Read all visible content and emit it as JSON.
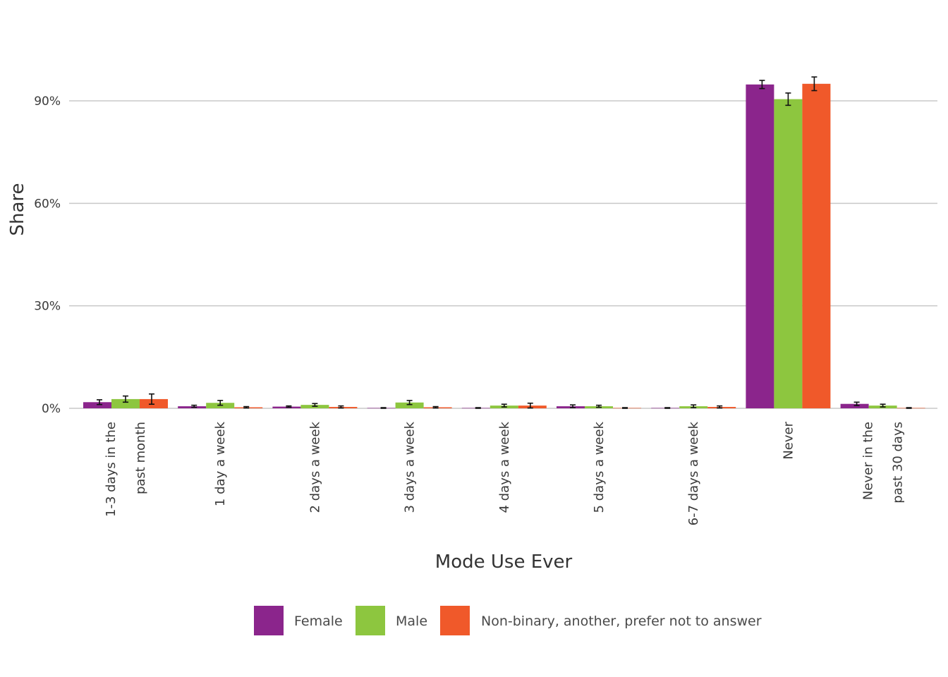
{
  "chart_data": {
    "type": "bar",
    "xlabel": "Mode Use Ever",
    "ylabel": "Share",
    "ylim": [
      0,
      100
    ],
    "yticks": [
      0,
      30,
      60,
      90
    ],
    "ytick_labels": [
      "0%",
      "30%",
      "60%",
      "90%"
    ],
    "grid": true,
    "legend_position": "bottom",
    "categories": [
      [
        "1-3 days in the",
        "past month"
      ],
      [
        "1 day a week"
      ],
      [
        "2 days a week"
      ],
      [
        "3 days a week"
      ],
      [
        "4 days a week"
      ],
      [
        "5 days a week"
      ],
      [
        "6-7 days a week"
      ],
      [
        "Never"
      ],
      [
        "Never in the",
        "past 30 days"
      ]
    ],
    "series": [
      {
        "name": "Female",
        "color": "#8B258C",
        "values": [
          1.8,
          0.6,
          0.5,
          0.1,
          0.1,
          0.6,
          0.1,
          94.8,
          1.3
        ],
        "error": [
          0.7,
          0.3,
          0.2,
          0.1,
          0.1,
          0.4,
          0.1,
          1.2,
          0.5
        ]
      },
      {
        "name": "Male",
        "color": "#8DC63F",
        "values": [
          2.7,
          1.6,
          1.0,
          1.7,
          0.8,
          0.6,
          0.6,
          90.5,
          0.8
        ],
        "error": [
          0.9,
          0.7,
          0.4,
          0.6,
          0.4,
          0.3,
          0.4,
          1.8,
          0.4
        ]
      },
      {
        "name": "Non-binary, another, prefer not to answer",
        "color": "#F0592A",
        "values": [
          2.7,
          0.3,
          0.4,
          0.3,
          0.8,
          0.1,
          0.4,
          95.0,
          0.1
        ],
        "error": [
          1.5,
          0.2,
          0.3,
          0.2,
          0.7,
          0.1,
          0.3,
          2.0,
          0.1
        ]
      }
    ]
  }
}
